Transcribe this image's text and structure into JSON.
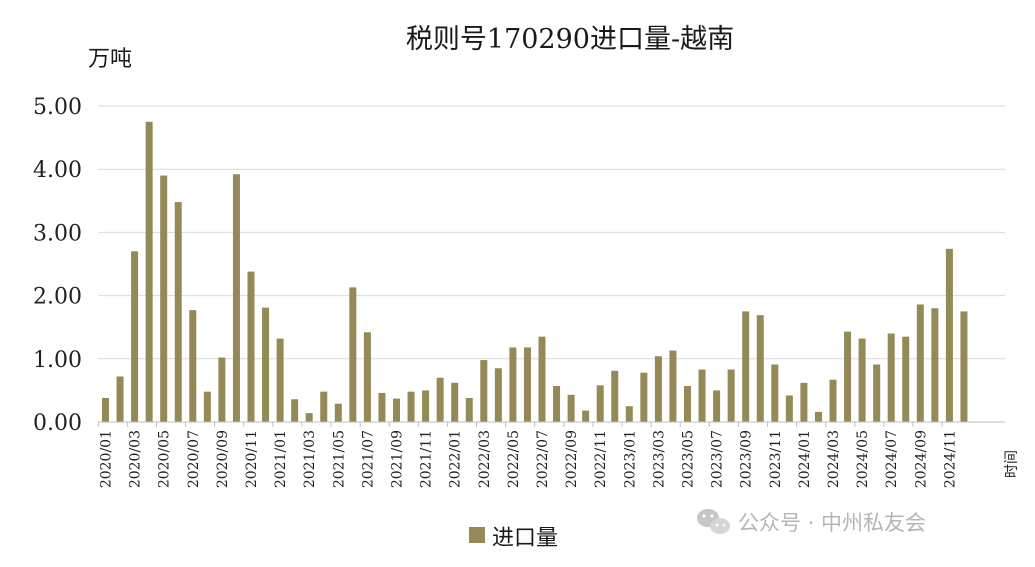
{
  "chart_data": {
    "type": "bar",
    "title": "税则号170290进口量-越南",
    "ylabel": "万吨",
    "xlabel": "时间",
    "ylim": [
      0,
      5
    ],
    "yticks": [
      "0.00",
      "1.00",
      "2.00",
      "3.00",
      "4.00",
      "5.00"
    ],
    "grid": true,
    "legend_position": "bottom",
    "series": [
      {
        "name": "进口量",
        "color": "#948957",
        "values": [
          0.38,
          0.72,
          2.7,
          4.75,
          3.9,
          3.48,
          1.77,
          0.48,
          1.02,
          3.92,
          2.38,
          1.81,
          1.32,
          0.36,
          0.14,
          0.48,
          0.29,
          2.13,
          1.42,
          0.46,
          0.37,
          0.48,
          0.5,
          0.7,
          0.62,
          0.38,
          0.98,
          0.85,
          1.18,
          1.18,
          1.35,
          0.57,
          0.43,
          0.18,
          0.58,
          0.81,
          0.25,
          0.78,
          1.04,
          1.13,
          0.57,
          0.83,
          0.5,
          0.83,
          1.75,
          1.69,
          0.91,
          0.42,
          0.62,
          0.16,
          0.67,
          1.43,
          1.32,
          0.91,
          1.4,
          1.35,
          1.86,
          1.8,
          2.74,
          1.75
        ]
      }
    ],
    "categories": [
      "2020/01",
      "2020/02",
      "2020/03",
      "2020/04",
      "2020/05",
      "2020/06",
      "2020/07",
      "2020/08",
      "2020/09",
      "2020/10",
      "2020/11",
      "2020/12",
      "2021/01",
      "2021/02",
      "2021/03",
      "2021/04",
      "2021/05",
      "2021/06",
      "2021/07",
      "2021/08",
      "2021/09",
      "2021/10",
      "2021/11",
      "2021/12",
      "2022/01",
      "2022/02",
      "2022/03",
      "2022/04",
      "2022/05",
      "2022/06",
      "2022/07",
      "2022/08",
      "2022/09",
      "2022/10",
      "2022/11",
      "2022/12",
      "2023/01",
      "2023/02",
      "2023/03",
      "2023/04",
      "2023/05",
      "2023/06",
      "2023/07",
      "2023/08",
      "2023/09",
      "2023/10",
      "2023/11",
      "2023/12",
      "2024/01",
      "2024/02",
      "2024/03",
      "2024/04",
      "2024/05",
      "2024/06",
      "2024/07",
      "2024/08",
      "2024/09",
      "2024/10",
      "2024/11",
      "2024/12"
    ],
    "xtick_labels": [
      "2020/01",
      "2020/03",
      "2020/05",
      "2020/07",
      "2020/09",
      "2020/11",
      "2021/01",
      "2021/03",
      "2021/05",
      "2021/07",
      "2021/09",
      "2021/11",
      "2022/01",
      "2022/03",
      "2022/05",
      "2022/07",
      "2022/09",
      "2022/11",
      "2023/01",
      "2023/03",
      "2023/05",
      "2023/07",
      "2023/09",
      "2023/11",
      "2024/01",
      "2024/03",
      "2024/05",
      "2024/07",
      "2024/09",
      "2024/11"
    ]
  },
  "watermark": {
    "icon": "wechat-icon",
    "text": "公众号 · 中州私友会"
  }
}
